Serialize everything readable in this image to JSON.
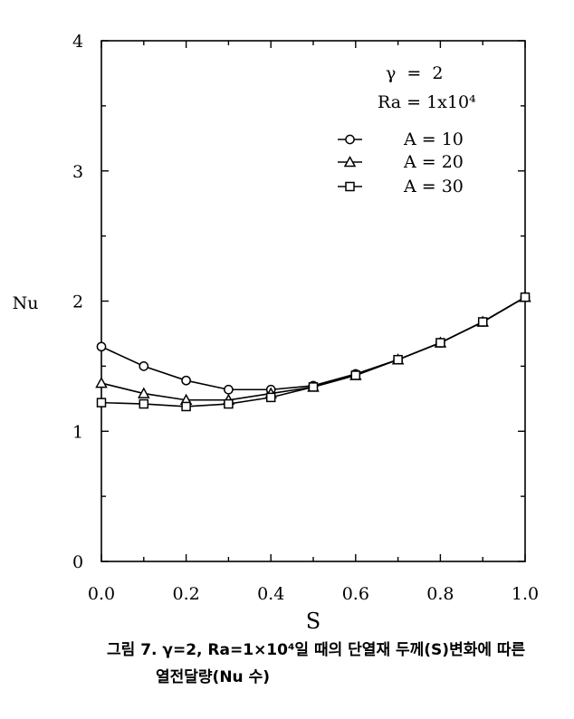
{
  "chart_data": {
    "type": "line",
    "title": "",
    "xlabel": "S",
    "ylabel": "Nu",
    "xlim": [
      0,
      1
    ],
    "ylim": [
      0,
      4
    ],
    "xticks": [
      "0.0",
      "0.2",
      "0.4",
      "0.6",
      "0.8",
      "1.0"
    ],
    "yticks": [
      "0",
      "1",
      "2",
      "3",
      "4"
    ],
    "grid": false,
    "legend_placement": "top-right",
    "params": [
      "γ  =  2",
      "Ra = 1x10⁴"
    ],
    "x": [
      0.0,
      0.1,
      0.2,
      0.3,
      0.4,
      0.5,
      0.6,
      0.7,
      0.8,
      0.9,
      1.0
    ],
    "series": [
      {
        "name": "A = 10",
        "marker": "circle",
        "values": [
          1.65,
          1.5,
          1.39,
          1.32,
          1.32,
          1.35,
          1.44,
          1.55,
          1.68,
          1.84,
          2.03
        ]
      },
      {
        "name": "A = 20",
        "marker": "triangle",
        "values": [
          1.37,
          1.29,
          1.24,
          1.24,
          1.29,
          1.34,
          1.43,
          1.55,
          1.68,
          1.84,
          2.03
        ]
      },
      {
        "name": "A = 30",
        "marker": "square",
        "values": [
          1.22,
          1.21,
          1.19,
          1.21,
          1.26,
          1.34,
          1.43,
          1.55,
          1.68,
          1.84,
          2.03
        ]
      }
    ]
  },
  "caption": {
    "line1": "그림 7. γ=2, Ra=1×10⁴일 때의 단열재 두께(S)변화에 따른",
    "line2": "열전달량(Nu 수)"
  }
}
